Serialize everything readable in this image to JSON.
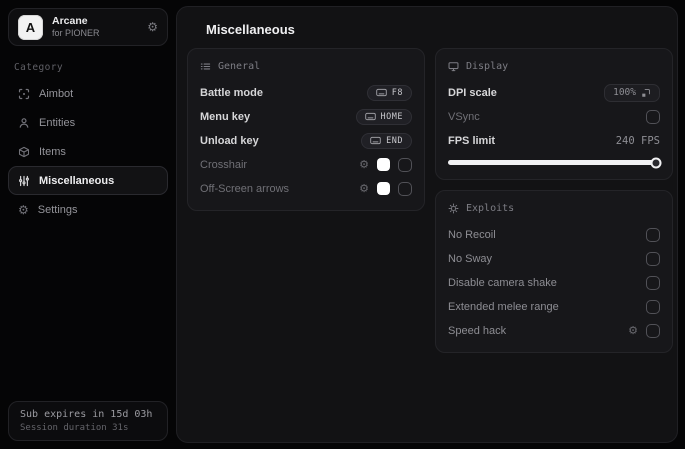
{
  "colors": {
    "background": "#050506",
    "panel_bg": "#121214",
    "card_bg": "#17171a",
    "accent_white": "#f2f2f2",
    "text_primary": "#ececee",
    "text_dim": "#8a8a90",
    "swatch_color": "#ffffff"
  },
  "app": {
    "logo_letter": "A",
    "name": "Arcane",
    "subtitle": "for PIONER"
  },
  "sidebar": {
    "category_label": "Category",
    "items": [
      {
        "label": "Aimbot",
        "icon": "scan-icon",
        "selected": false
      },
      {
        "label": "Entities",
        "icon": "entities-icon",
        "selected": false
      },
      {
        "label": "Items",
        "icon": "cube-icon",
        "selected": false
      },
      {
        "label": "Miscellaneous",
        "icon": "sliders-icon",
        "selected": true
      },
      {
        "label": "Settings",
        "icon": "gear-icon",
        "selected": false
      }
    ],
    "footer": {
      "line1": "Sub expires in 15d 03h",
      "line2": "Session duration 31s"
    }
  },
  "main": {
    "title": "Miscellaneous",
    "general": {
      "title": "General",
      "rows": [
        {
          "label": "Battle mode",
          "control": "keybind",
          "value": "F8"
        },
        {
          "label": "Menu key",
          "control": "keybind",
          "value": "HOME"
        },
        {
          "label": "Unload key",
          "control": "keybind",
          "value": "END"
        },
        {
          "label": "Crosshair",
          "control": "color+checkbox",
          "color": "#ffffff",
          "checked": false
        },
        {
          "label": "Off-Screen arrows",
          "control": "color+checkbox",
          "color": "#ffffff",
          "checked": false
        }
      ]
    },
    "display": {
      "title": "Display",
      "dpi": {
        "label": "DPI scale",
        "value": "100%"
      },
      "vsync": {
        "label": "VSync",
        "checked": false
      },
      "fps": {
        "label": "FPS limit",
        "value": "240 FPS",
        "slider_percent": 98
      }
    },
    "exploits": {
      "title": "Exploits",
      "rows": [
        {
          "label": "No Recoil",
          "checked": false
        },
        {
          "label": "No Sway",
          "checked": false
        },
        {
          "label": "Disable camera shake",
          "checked": false
        },
        {
          "label": "Extended melee range",
          "checked": false
        },
        {
          "label": "Speed hack",
          "has_gear": true,
          "checked": false
        }
      ]
    }
  }
}
